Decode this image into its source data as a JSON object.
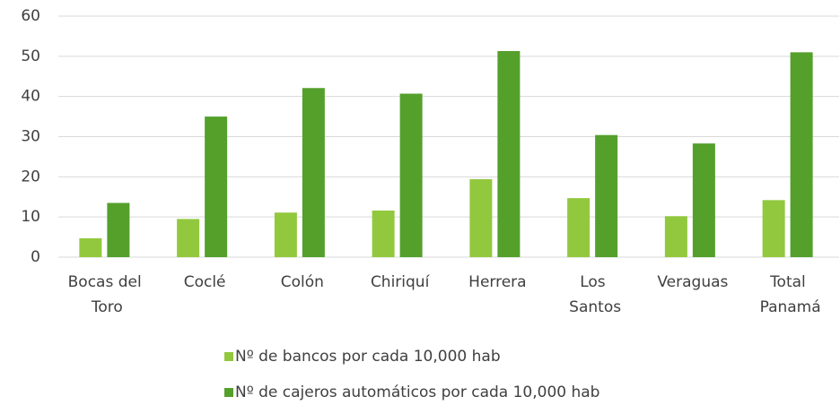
{
  "chart_data": {
    "type": "bar",
    "categories": [
      "Bocas del Toro",
      "Coclé",
      "Colón",
      "Chiriquí",
      "Herrera",
      "Los Santos",
      "Veraguas",
      "Total Panamá"
    ],
    "series": [
      {
        "name": "Nº de bancos por cada 10,000 hab",
        "color": "#92c83e",
        "values": [
          4.7,
          9.5,
          11.1,
          11.6,
          19.4,
          14.7,
          10.2,
          14.2
        ]
      },
      {
        "name": "Nº de cajeros automáticos por cada 10,000 hab",
        "color": "#54a02b",
        "values": [
          13.5,
          35.0,
          42.1,
          40.7,
          51.3,
          30.4,
          28.3,
          51.0
        ]
      }
    ],
    "ylim": [
      0,
      60
    ],
    "yticks": [
      0,
      10,
      20,
      30,
      40,
      50,
      60
    ],
    "grid": true,
    "legend": "bottom"
  }
}
